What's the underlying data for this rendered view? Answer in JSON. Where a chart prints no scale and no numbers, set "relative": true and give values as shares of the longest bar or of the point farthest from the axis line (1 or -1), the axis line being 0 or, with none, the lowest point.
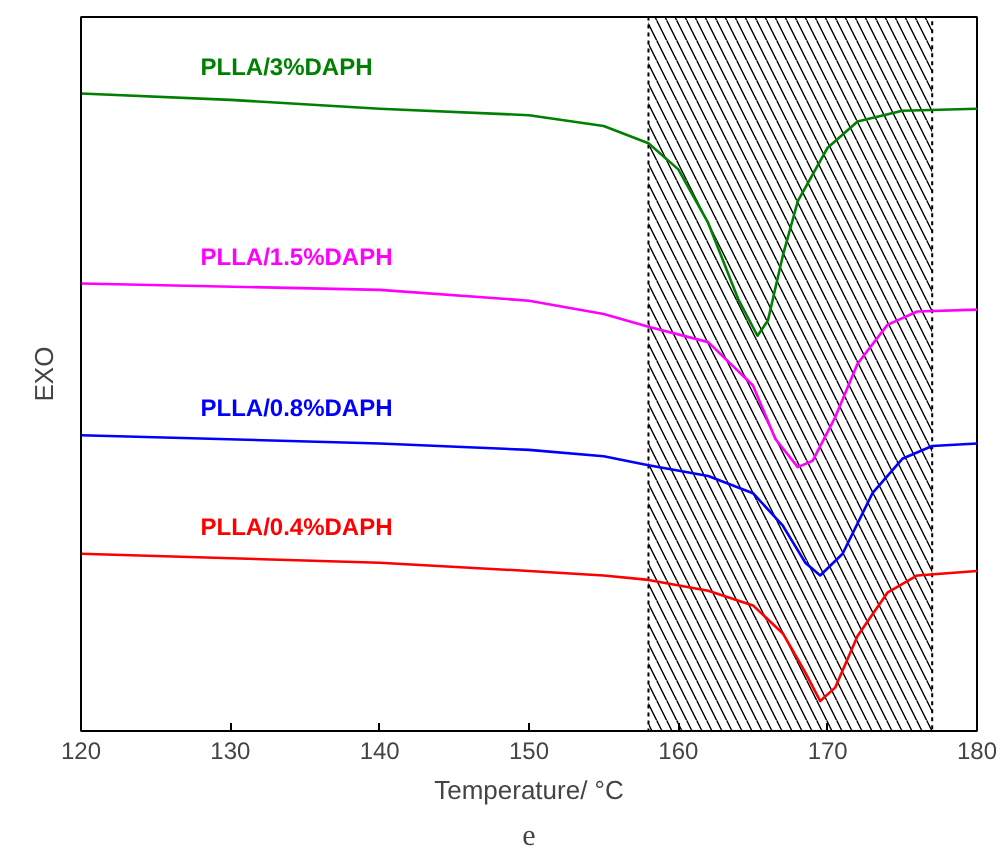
{
  "chart_data": {
    "type": "line",
    "relative": true,
    "xlabel": "Temperature/ °C",
    "ylabel": "EXO",
    "xlim": [
      120,
      180
    ],
    "xticks": [
      120,
      130,
      140,
      150,
      160,
      170,
      180
    ],
    "tick_labels": "x",
    "grid": false,
    "annotations": [
      "e"
    ],
    "bands": [
      {
        "axis": "x",
        "from": 158,
        "to": 177,
        "color": "#000000"
      }
    ],
    "series": [
      {
        "name": "PLLA/3%DAPH",
        "color": "#008000",
        "x": [
          120,
          130,
          140,
          150,
          155,
          158,
          160,
          162,
          164,
          165.3,
          166,
          167,
          168,
          170,
          172,
          175,
          180
        ],
        "values": [
          1.0,
          0.99,
          0.976,
          0.966,
          0.949,
          0.922,
          0.881,
          0.797,
          0.678,
          0.62,
          0.644,
          0.746,
          0.831,
          0.915,
          0.956,
          0.973,
          0.976
        ]
      },
      {
        "name": "PLLA/1.5%DAPH",
        "color": "#ff00ff",
        "x": [
          120,
          140,
          150,
          155,
          158,
          162,
          165,
          166.5,
          168,
          169,
          170.5,
          172,
          174,
          176,
          180
        ],
        "values": [
          0.702,
          0.692,
          0.675,
          0.654,
          0.634,
          0.61,
          0.542,
          0.458,
          0.414,
          0.424,
          0.492,
          0.576,
          0.637,
          0.658,
          0.661
        ]
      },
      {
        "name": "PLLA/0.8%DAPH",
        "color": "#0000ff",
        "x": [
          120,
          140,
          150,
          155,
          158,
          162,
          165,
          167,
          168.5,
          169.5,
          171,
          173,
          175,
          177,
          180
        ],
        "values": [
          0.464,
          0.451,
          0.441,
          0.431,
          0.417,
          0.4,
          0.373,
          0.322,
          0.264,
          0.244,
          0.278,
          0.373,
          0.427,
          0.447,
          0.451
        ]
      },
      {
        "name": "PLLA/0.4%DAPH",
        "color": "#ff0000",
        "x": [
          120,
          140,
          150,
          155,
          158,
          162,
          165,
          167,
          168.5,
          169.5,
          170.5,
          172,
          174,
          176,
          180
        ],
        "values": [
          0.278,
          0.264,
          0.251,
          0.244,
          0.237,
          0.22,
          0.197,
          0.153,
          0.092,
          0.047,
          0.068,
          0.149,
          0.217,
          0.244,
          0.251
        ]
      }
    ]
  }
}
